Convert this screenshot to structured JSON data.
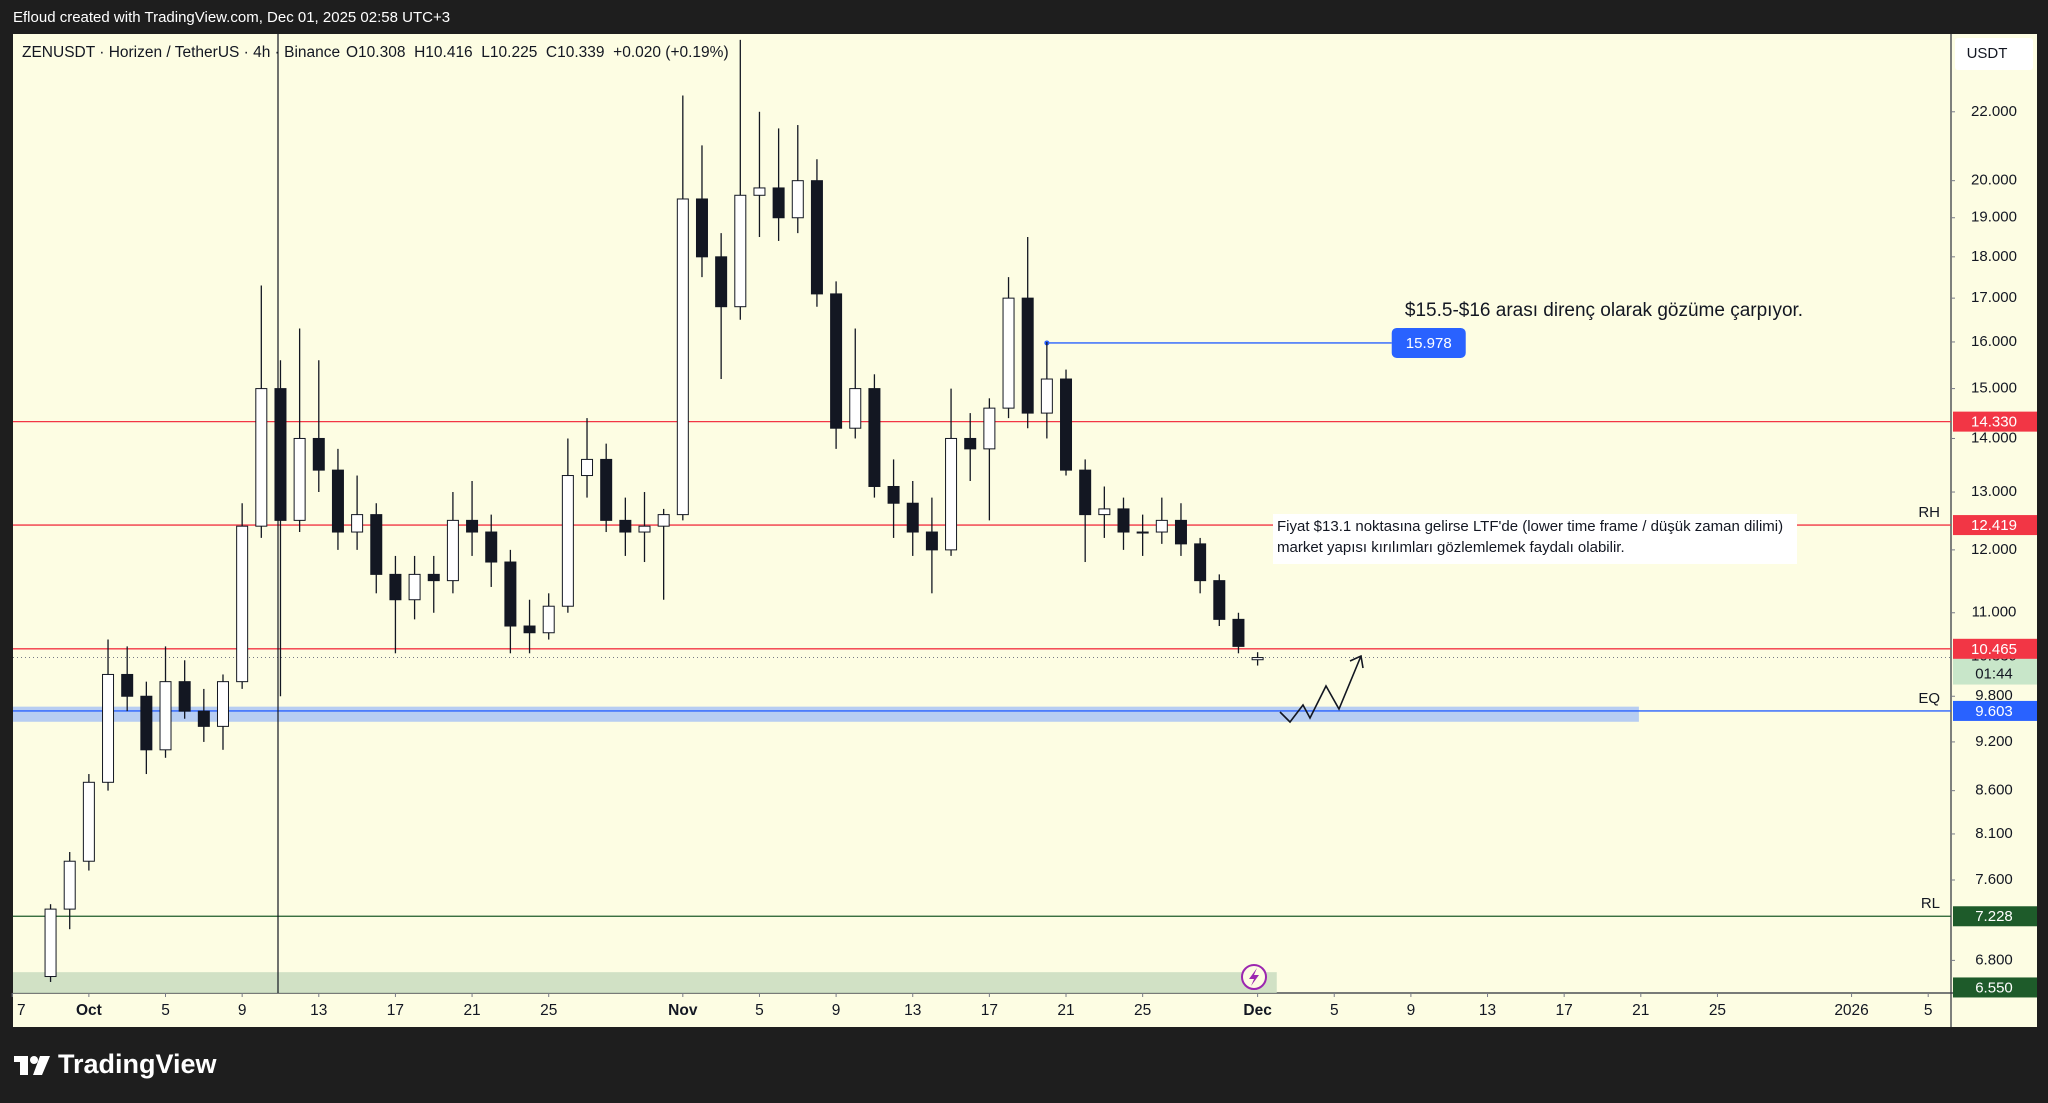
{
  "watermark": "Efloud created with TradingView.com, Dec 01, 2025 02:58 UTC+3",
  "brand": "TradingView",
  "chart_data": {
    "type": "candlestick",
    "title": "ZENUSDT · Horizen / TetherUS · 4h · Binance",
    "ohlc_readout": "O10.308  H10.416  L10.225  C10.339  +0.020 (+0.19%)",
    "currency": "USDT",
    "log_scale": true,
    "grid": false,
    "up_color": "#ffffff",
    "down_color": "#131722",
    "x": [
      -2,
      -1,
      0,
      1,
      2,
      3,
      4,
      5,
      6,
      7,
      8,
      9,
      10,
      11,
      12,
      13,
      14,
      15,
      16,
      17,
      18,
      19,
      20,
      21,
      22,
      23,
      24,
      25,
      26,
      27,
      28,
      29,
      30,
      31,
      32,
      33,
      34,
      35,
      36,
      37,
      38,
      39,
      40,
      41,
      42,
      43,
      44,
      45,
      46,
      47,
      48,
      49,
      50,
      51,
      52,
      53,
      54,
      55,
      56,
      57,
      58,
      59,
      60,
      61
    ],
    "open": [
      6.65,
      7.3,
      7.8,
      8.7,
      10.1,
      9.8,
      9.1,
      10.0,
      9.6,
      9.4,
      10.0,
      12.4,
      15.0,
      12.5,
      14.0,
      13.4,
      12.3,
      12.6,
      11.6,
      11.2,
      11.6,
      11.5,
      12.5,
      12.3,
      11.8,
      10.8,
      10.7,
      11.1,
      13.3,
      13.6,
      12.5,
      12.3,
      12.4,
      12.6,
      19.5,
      18.0,
      16.8,
      19.6,
      19.8,
      19.0,
      20.0,
      17.1,
      14.2,
      15.0,
      13.1,
      12.8,
      12.3,
      12.0,
      14.0,
      13.8,
      14.6,
      17.0,
      14.5,
      15.2,
      13.4,
      12.6,
      12.7,
      12.3,
      12.3,
      12.5,
      12.1,
      11.5,
      10.9,
      10.308
    ],
    "high": [
      7.35,
      7.9,
      8.8,
      10.6,
      10.5,
      10.0,
      10.5,
      10.3,
      9.9,
      10.1,
      12.8,
      17.3,
      15.6,
      16.3,
      15.6,
      13.8,
      13.3,
      12.8,
      11.9,
      11.9,
      11.9,
      13.0,
      13.2,
      12.6,
      12.0,
      11.2,
      11.3,
      14.0,
      14.4,
      13.9,
      12.9,
      13.0,
      12.7,
      22.5,
      21.0,
      18.6,
      24.3,
      22.0,
      21.5,
      21.6,
      20.6,
      17.4,
      16.3,
      15.3,
      13.6,
      13.2,
      12.9,
      15.0,
      14.5,
      14.8,
      17.5,
      18.5,
      16.0,
      15.4,
      13.6,
      13.1,
      12.9,
      12.6,
      12.9,
      12.8,
      12.2,
      11.6,
      11.0,
      10.416
    ],
    "low": [
      6.6,
      7.1,
      7.7,
      8.6,
      9.6,
      8.8,
      9.0,
      9.5,
      9.2,
      9.1,
      9.9,
      12.2,
      9.8,
      12.3,
      13.0,
      12.0,
      12.0,
      11.3,
      10.4,
      10.9,
      11.0,
      11.3,
      11.9,
      11.4,
      10.4,
      10.4,
      10.6,
      11.0,
      12.9,
      12.3,
      11.9,
      11.8,
      11.2,
      12.5,
      17.5,
      15.2,
      16.5,
      18.5,
      18.4,
      18.6,
      16.8,
      13.8,
      14.0,
      12.9,
      12.2,
      11.9,
      11.3,
      11.9,
      13.2,
      12.5,
      14.4,
      14.2,
      14.0,
      13.3,
      11.8,
      12.2,
      12.0,
      11.9,
      12.1,
      11.9,
      11.3,
      10.8,
      10.4,
      10.225
    ],
    "close": [
      7.3,
      7.8,
      8.7,
      10.1,
      9.8,
      9.1,
      10.0,
      9.6,
      9.4,
      10.0,
      12.4,
      15.0,
      12.5,
      14.0,
      13.4,
      12.3,
      12.6,
      11.6,
      11.2,
      11.6,
      11.5,
      12.5,
      12.3,
      11.8,
      10.8,
      10.7,
      11.1,
      13.3,
      13.6,
      12.5,
      12.3,
      12.4,
      12.6,
      19.5,
      18.0,
      16.8,
      19.6,
      19.8,
      19.0,
      20.0,
      17.1,
      14.2,
      15.0,
      13.1,
      12.8,
      12.3,
      12.0,
      14.0,
      13.8,
      14.6,
      17.0,
      14.5,
      15.2,
      13.4,
      12.6,
      12.7,
      12.3,
      12.3,
      12.5,
      12.1,
      11.5,
      10.9,
      10.5,
      10.339
    ],
    "xlim": [
      -3.96,
      97.19
    ],
    "xticks": [
      {
        "value": -4,
        "label": "7"
      },
      {
        "value": 0,
        "label": "Oct"
      },
      {
        "value": 4,
        "label": "5"
      },
      {
        "value": 8,
        "label": "9"
      },
      {
        "value": 12,
        "label": "13"
      },
      {
        "value": 16,
        "label": "17"
      },
      {
        "value": 20,
        "label": "21"
      },
      {
        "value": 24,
        "label": "25"
      },
      {
        "value": 31,
        "label": "Nov"
      },
      {
        "value": 35,
        "label": "5"
      },
      {
        "value": 39,
        "label": "9"
      },
      {
        "value": 43,
        "label": "13"
      },
      {
        "value": 47,
        "label": "17"
      },
      {
        "value": 51,
        "label": "21"
      },
      {
        "value": 55,
        "label": "25"
      },
      {
        "value": 61,
        "label": "Dec"
      },
      {
        "value": 65,
        "label": "5"
      },
      {
        "value": 69,
        "label": "9"
      },
      {
        "value": 73,
        "label": "13"
      },
      {
        "value": 77,
        "label": "17"
      },
      {
        "value": 81,
        "label": "21"
      },
      {
        "value": 85,
        "label": "25"
      },
      {
        "value": 92,
        "label": "2026"
      },
      {
        "value": 96,
        "label": "5"
      }
    ],
    "ylim": [
      6.5,
      24.5
    ],
    "yticks": [
      {
        "value": 6.8,
        "label": "6.800"
      },
      {
        "value": 7.6,
        "label": "7.600"
      },
      {
        "value": 8.1,
        "label": "8.100"
      },
      {
        "value": 8.6,
        "label": "8.600"
      },
      {
        "value": 9.2,
        "label": "9.200"
      },
      {
        "value": 9.8,
        "label": "9.800"
      },
      {
        "value": 11,
        "label": "11.000"
      },
      {
        "value": 12,
        "label": "12.000"
      },
      {
        "value": 13,
        "label": "13.000"
      },
      {
        "value": 14,
        "label": "14.000"
      },
      {
        "value": 15,
        "label": "15.000"
      },
      {
        "value": 16,
        "label": "16.000"
      },
      {
        "value": 17,
        "label": "17.000"
      },
      {
        "value": 18,
        "label": "18.000"
      },
      {
        "value": 19,
        "label": "19.000"
      },
      {
        "value": 20,
        "label": "20.000"
      },
      {
        "value": 22,
        "label": "22.000"
      }
    ],
    "zones": [
      {
        "low": 9.46,
        "high": 9.66,
        "x_end": 80.9,
        "color": "#aac4f5"
      },
      {
        "low": 6.5,
        "high": 6.69,
        "x_end": 62,
        "color": "#c9dcc0"
      }
    ],
    "levels": [
      {
        "value": 14.33,
        "label": "14.330",
        "color": "#f23645"
      },
      {
        "value": 12.419,
        "color": "#f23645",
        "tag": "RH"
      },
      {
        "value": 10.465,
        "color": "#f23645"
      },
      {
        "value": 9.603,
        "color": "#2962ff",
        "tag": "EQ"
      },
      {
        "value": 7.228,
        "color": "#1e5b2a",
        "tag": "RL"
      },
      {
        "value": 6.55,
        "label": "6.550",
        "color": "#1e5b2a",
        "style": "badge-only"
      }
    ],
    "price_line": {
      "value": 10.339,
      "countdown": "01:44",
      "color": "#c8e6c9"
    },
    "marker": {
      "value": 15.978,
      "x": [
        50,
        68
      ],
      "color": "#2962ff"
    },
    "annotations": [
      {
        "text": "$15.5-$16 arası direnç olarak gözüme çarpıyor."
      },
      {
        "lines": [
          "Fiyat $13.1 noktasına gelirse LTF'de (lower time frame / düşük zaman dilimi)",
          "market yapısı kırılımları gözlemlemek faydalı olabilir."
        ]
      }
    ]
  }
}
